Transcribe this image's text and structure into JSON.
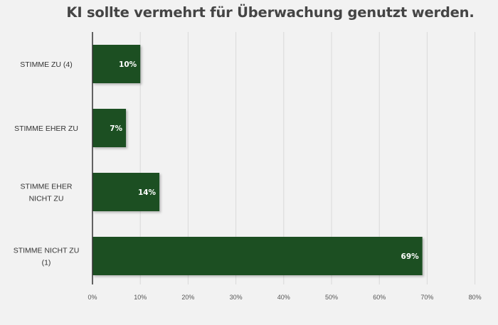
{
  "chart_data": {
    "type": "bar",
    "orientation": "horizontal",
    "title": "KI sollte vermehrt für Überwachung genutzt werden.",
    "categories": [
      [
        "STIMME ZU (4)"
      ],
      [
        "STIMME EHER ZU"
      ],
      [
        "STIMME EHER",
        "NICHT ZU"
      ],
      [
        "STIMME NICHT ZU",
        "(1)"
      ]
    ],
    "values": [
      10,
      7,
      14,
      69
    ],
    "value_labels": [
      "10%",
      "7%",
      "14%",
      "69%"
    ],
    "x_ticks": [
      "0%",
      "10%",
      "20%",
      "30%",
      "40%",
      "50%",
      "60%",
      "70%",
      "80%"
    ],
    "xlim": [
      0,
      80
    ],
    "grid": true,
    "colors": {
      "bar": "#1a5022",
      "grid": "#d9d9d9",
      "axis": "#333333"
    }
  }
}
